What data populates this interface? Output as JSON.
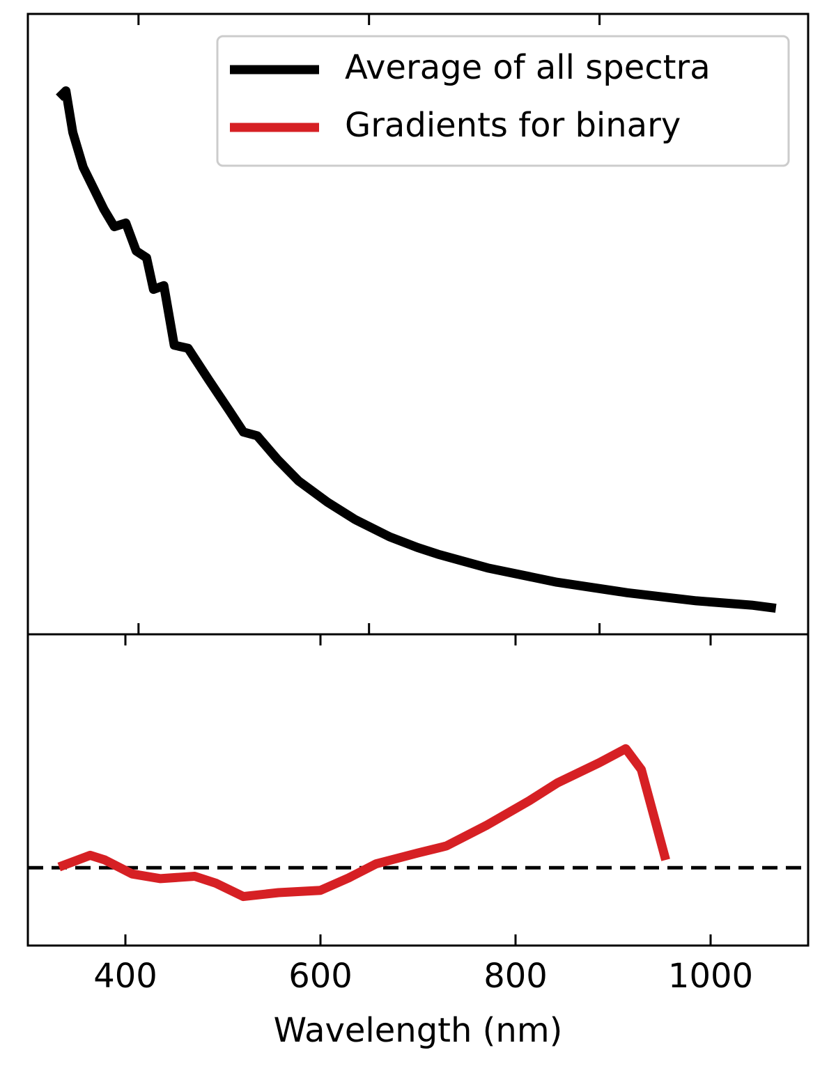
{
  "chart_data": [
    {
      "type": "line",
      "series": [
        {
          "name": "Average of all spectra",
          "color": "#000000",
          "x": [
            331,
            337,
            343,
            352,
            361,
            370,
            379,
            389,
            398,
            407,
            413,
            422,
            431,
            443,
            461,
            479,
            491,
            503,
            521,
            539,
            564,
            588,
            618,
            642,
            660,
            703,
            763,
            824,
            884,
            932,
            953
          ],
          "values": [
            8.65,
            8.76,
            8.09,
            7.53,
            7.19,
            6.85,
            6.57,
            6.63,
            6.18,
            6.07,
            5.56,
            5.62,
            4.66,
            4.61,
            4.1,
            3.6,
            3.26,
            3.2,
            2.81,
            2.47,
            2.13,
            1.85,
            1.57,
            1.4,
            1.29,
            1.07,
            0.84,
            0.67,
            0.54,
            0.47,
            0.42
          ]
        }
      ],
      "xlim": [
        304,
        981
      ],
      "xticks": [
        400,
        600,
        800
      ],
      "ylim": [
        0,
        10
      ],
      "legend": "upper right"
    },
    {
      "type": "line",
      "series": [
        {
          "name": "Gradients for binary",
          "color": "#d62024",
          "x": [
            332,
            364,
            379,
            407,
            436,
            471,
            493,
            521,
            557,
            600,
            629,
            657,
            700,
            729,
            771,
            814,
            843,
            886,
            913,
            929,
            954
          ],
          "values": [
            0.01,
            0.16,
            0.1,
            -0.08,
            -0.14,
            -0.11,
            -0.2,
            -0.37,
            -0.32,
            -0.29,
            -0.13,
            0.05,
            0.19,
            0.28,
            0.55,
            0.86,
            1.09,
            1.35,
            1.53,
            1.26,
            0.1
          ]
        }
      ],
      "xlim": [
        300,
        1100
      ],
      "xticks": [
        400,
        600,
        800,
        1000
      ],
      "ylim": [
        -1,
        3
      ],
      "hline": 0,
      "xlabel": "Wavelength (nm)"
    }
  ]
}
